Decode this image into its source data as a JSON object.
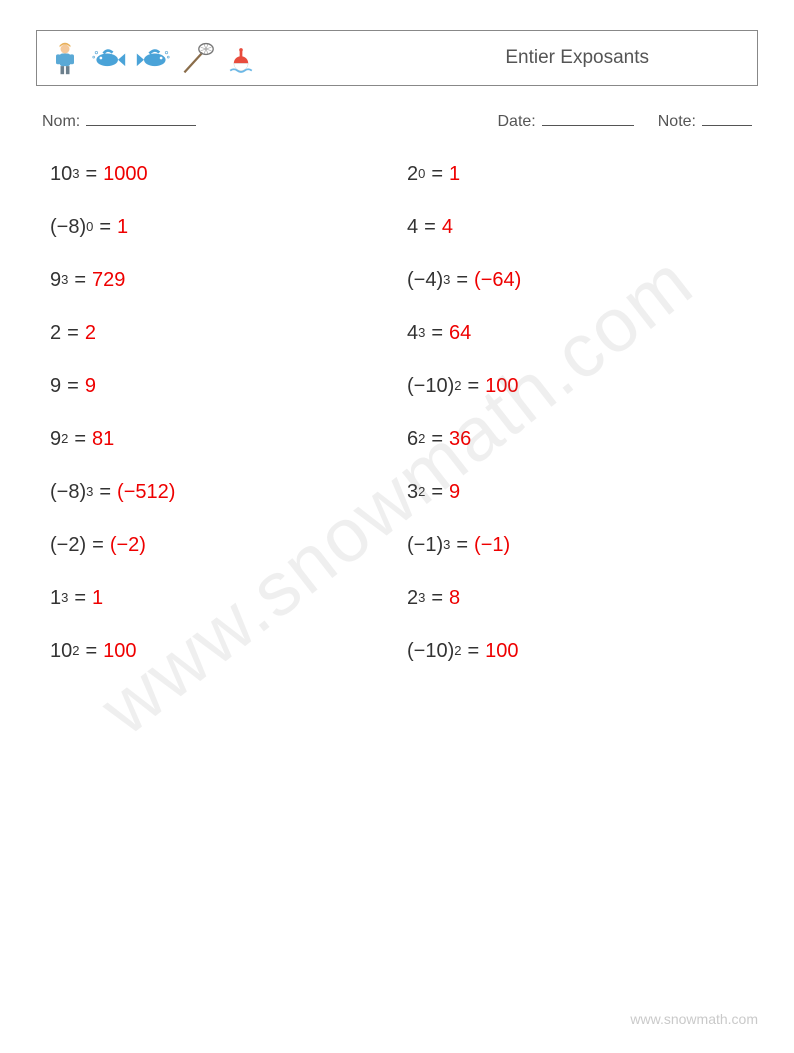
{
  "header": {
    "title": "Entier Exposants"
  },
  "meta": {
    "name_label": "Nom:",
    "date_label": "Date:",
    "note_label": "Note:"
  },
  "watermark": "www.snowmath.com",
  "footer": "www.snowmath.com",
  "colors": {
    "answer": "#ee0000",
    "text": "#333333",
    "border": "#888888",
    "background": "#ffffff"
  },
  "icons": {
    "fisherman": "#5aa9d6",
    "fish1": "#4aa3d8",
    "fish2": "#4aa3d8",
    "net": "#777777",
    "bobber_red": "#e84c3d",
    "bobber_white": "#ffffff",
    "water": "#6cb8e6"
  },
  "problems": [
    {
      "col": 0,
      "base": "10",
      "exp": "3",
      "answer": "1000"
    },
    {
      "col": 1,
      "base": "2",
      "exp": "0",
      "answer": "1"
    },
    {
      "col": 0,
      "base": "(−8)",
      "exp": "0",
      "answer": "1"
    },
    {
      "col": 1,
      "base": "4",
      "exp": "",
      "answer": "4"
    },
    {
      "col": 0,
      "base": "9",
      "exp": "3",
      "answer": "729"
    },
    {
      "col": 1,
      "base": "(−4)",
      "exp": "3",
      "answer": "(−64)"
    },
    {
      "col": 0,
      "base": "2",
      "exp": "",
      "answer": "2"
    },
    {
      "col": 1,
      "base": "4",
      "exp": "3",
      "answer": "64"
    },
    {
      "col": 0,
      "base": "9",
      "exp": "",
      "answer": "9"
    },
    {
      "col": 1,
      "base": "(−10)",
      "exp": "2",
      "answer": "100"
    },
    {
      "col": 0,
      "base": "9",
      "exp": "2",
      "answer": "81"
    },
    {
      "col": 1,
      "base": "6",
      "exp": "2",
      "answer": "36"
    },
    {
      "col": 0,
      "base": "(−8)",
      "exp": "3",
      "answer": "(−512)"
    },
    {
      "col": 1,
      "base": "3",
      "exp": "2",
      "answer": "9"
    },
    {
      "col": 0,
      "base": "(−2)",
      "exp": "",
      "answer": "(−2)"
    },
    {
      "col": 1,
      "base": "(−1)",
      "exp": "3",
      "answer": "(−1)"
    },
    {
      "col": 0,
      "base": "1",
      "exp": "3",
      "answer": "1"
    },
    {
      "col": 1,
      "base": "2",
      "exp": "3",
      "answer": "8"
    },
    {
      "col": 0,
      "base": "10",
      "exp": "2",
      "answer": "100"
    },
    {
      "col": 1,
      "base": "(−10)",
      "exp": "2",
      "answer": "100"
    }
  ]
}
